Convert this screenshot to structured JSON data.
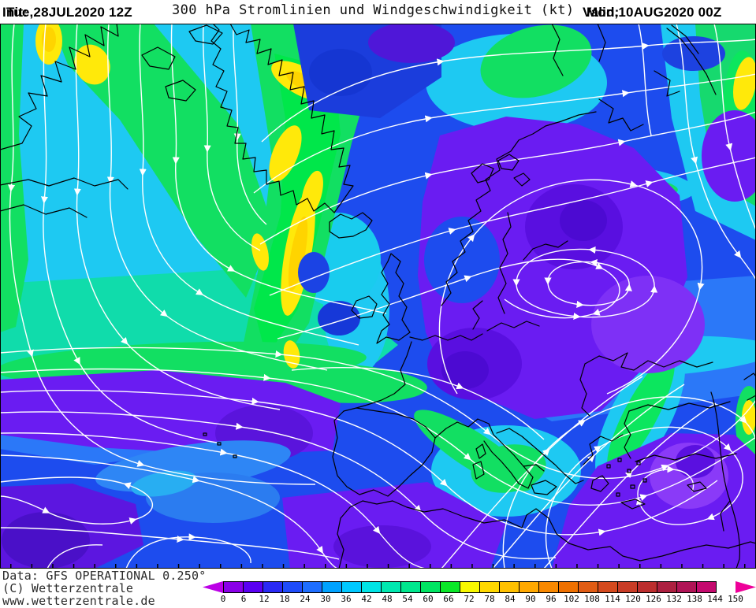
{
  "header": {
    "init_label": "Init:",
    "init_value": "Tue,28JUL2020 12Z",
    "title": "300 hPa Stromlinien und Windgeschwindigkeit (kt)",
    "valid_label": "Valid:",
    "valid_value": "Mon,10AUG2020 00Z"
  },
  "footer": {
    "data_line": "Data: GFS OPERATIONAL 0.250°",
    "copyright_line": "(C) Wetterzentrale",
    "website": "www.wetterzentrale.de"
  },
  "colorbar": {
    "unit": "kt",
    "ticks": [
      "0",
      "6",
      "12",
      "18",
      "24",
      "30",
      "36",
      "42",
      "48",
      "54",
      "60",
      "66",
      "72",
      "78",
      "84",
      "90",
      "96",
      "102",
      "108",
      "114",
      "120",
      "126",
      "132",
      "138",
      "144",
      "150"
    ],
    "segment_colors": [
      "#8a00e8",
      "#5a00f2",
      "#2a2af5",
      "#1f4cfa",
      "#1e6eff",
      "#00a2ff",
      "#00c8ff",
      "#00e4e6",
      "#00e8b0",
      "#00e88e",
      "#00e562",
      "#0ae828",
      "#f8f800",
      "#ffd800",
      "#ffc000",
      "#ffa800",
      "#f88800",
      "#ee7000",
      "#e05c14",
      "#d44a1e",
      "#c83c26",
      "#bc2e2e",
      "#ac2040",
      "#b01456",
      "#c40a6e"
    ],
    "under_range_color": "#bb00e6",
    "over_range_color": "#ee0099"
  },
  "map": {
    "streamline_color": "#ffffff",
    "coastline_color": "#000000",
    "base_field_color": "#1d4cee"
  }
}
